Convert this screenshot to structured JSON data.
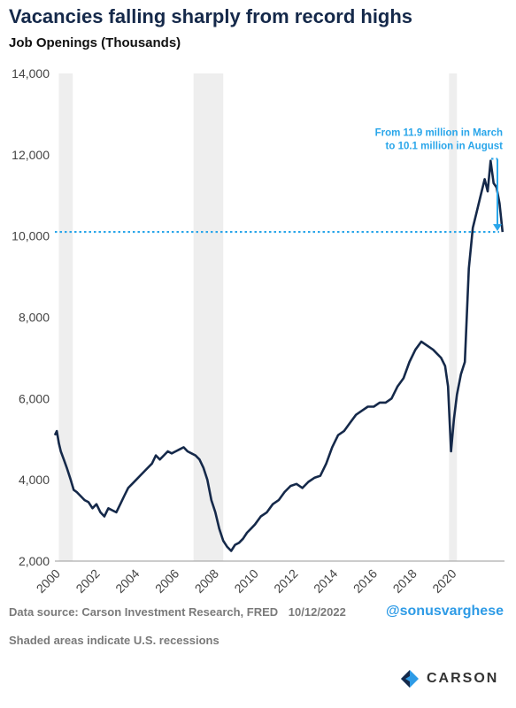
{
  "header": {
    "title": "Vacancies falling sharply from record highs",
    "subtitle": "Job Openings (Thousands)"
  },
  "footer": {
    "source": "Data source: Carson Investment Research, FRED",
    "date": "10/12/2022",
    "note": "Shaded areas indicate U.S. recessions",
    "handle": "@sonusvarghese",
    "logo_text": "CARSON"
  },
  "colors": {
    "line": "#15294a",
    "recession": "#eeeeee",
    "annotation": "#2aa6ea",
    "handle": "#2e9be6"
  },
  "chart_data": {
    "type": "line",
    "title": "Vacancies falling sharply from record highs",
    "ylabel": "Job Openings (Thousands)",
    "xlim": [
      2000.0,
      2022.7
    ],
    "ylim": [
      2000,
      14000
    ],
    "xticks": [
      2000,
      2002,
      2004,
      2006,
      2008,
      2010,
      2012,
      2014,
      2016,
      2018,
      2020
    ],
    "xtick_labels": [
      "2000",
      "2002",
      "2004",
      "2006",
      "2008",
      "2010",
      "2012",
      "2014",
      "2016",
      "2018",
      "2020"
    ],
    "yticks": [
      2000,
      4000,
      6000,
      8000,
      10000,
      12000,
      14000
    ],
    "ytick_labels": [
      "2,000",
      "4,000",
      "6,000",
      "8,000",
      "10,000",
      "12,000",
      "14,000"
    ],
    "grid": false,
    "recessions": [
      [
        2000.2,
        2000.9
      ],
      [
        2007.0,
        2008.5
      ],
      [
        2019.9,
        2020.3
      ]
    ],
    "series": [
      {
        "x": [
          2000.0,
          2000.1,
          2000.2,
          2000.3,
          2000.45,
          2000.6,
          2000.8,
          2000.95,
          2001.1,
          2001.3,
          2001.5,
          2001.7,
          2001.9,
          2002.1,
          2002.3,
          2002.5,
          2002.7,
          2002.9,
          2003.1,
          2003.3,
          2003.5,
          2003.7,
          2003.9,
          2004.1,
          2004.3,
          2004.5,
          2004.7,
          2004.9,
          2005.1,
          2005.3,
          2005.5,
          2005.7,
          2005.9,
          2006.1,
          2006.3,
          2006.5,
          2006.7,
          2006.9,
          2007.1,
          2007.3,
          2007.5,
          2007.7,
          2007.9,
          2008.1,
          2008.3,
          2008.5,
          2008.7,
          2008.9,
          2009.1,
          2009.3,
          2009.5,
          2009.7,
          2009.9,
          2010.1,
          2010.4,
          2010.7,
          2011.0,
          2011.3,
          2011.6,
          2011.9,
          2012.2,
          2012.5,
          2012.8,
          2013.1,
          2013.4,
          2013.7,
          2014.0,
          2014.3,
          2014.6,
          2014.9,
          2015.2,
          2015.5,
          2015.8,
          2016.1,
          2016.4,
          2016.7,
          2017.0,
          2017.3,
          2017.6,
          2017.9,
          2018.2,
          2018.5,
          2018.8,
          2019.1,
          2019.3,
          2019.5,
          2019.7,
          2019.85,
          2020.0,
          2020.15,
          2020.3,
          2020.5,
          2020.7,
          2020.9,
          2021.1,
          2021.3,
          2021.5,
          2021.7,
          2021.85,
          2022.0,
          2022.15,
          2022.3,
          2022.45,
          2022.6
        ],
        "y": [
          5100,
          5200,
          4900,
          4700,
          4500,
          4300,
          4000,
          3750,
          3700,
          3600,
          3500,
          3450,
          3300,
          3400,
          3200,
          3100,
          3300,
          3250,
          3200,
          3400,
          3600,
          3800,
          3900,
          4000,
          4100,
          4200,
          4300,
          4400,
          4600,
          4500,
          4600,
          4700,
          4650,
          4700,
          4750,
          4800,
          4700,
          4650,
          4600,
          4500,
          4300,
          4000,
          3500,
          3200,
          2800,
          2500,
          2350,
          2250,
          2400,
          2450,
          2550,
          2700,
          2800,
          2900,
          3100,
          3200,
          3400,
          3500,
          3700,
          3850,
          3900,
          3800,
          3950,
          4050,
          4100,
          4400,
          4800,
          5100,
          5200,
          5400,
          5600,
          5700,
          5800,
          5800,
          5900,
          5900,
          6000,
          6300,
          6500,
          6900,
          7200,
          7400,
          7300,
          7200,
          7100,
          7000,
          6800,
          6300,
          4700,
          5500,
          6100,
          6600,
          6900,
          9200,
          10200,
          10600,
          11000,
          11400,
          11100,
          11850,
          11300,
          11200,
          10800,
          10100
        ]
      }
    ],
    "annotation": {
      "text_lines": [
        "From 11.9 million in March",
        "to 10.1 million in August"
      ],
      "from_value": 11900,
      "to_value": 10100
    }
  }
}
